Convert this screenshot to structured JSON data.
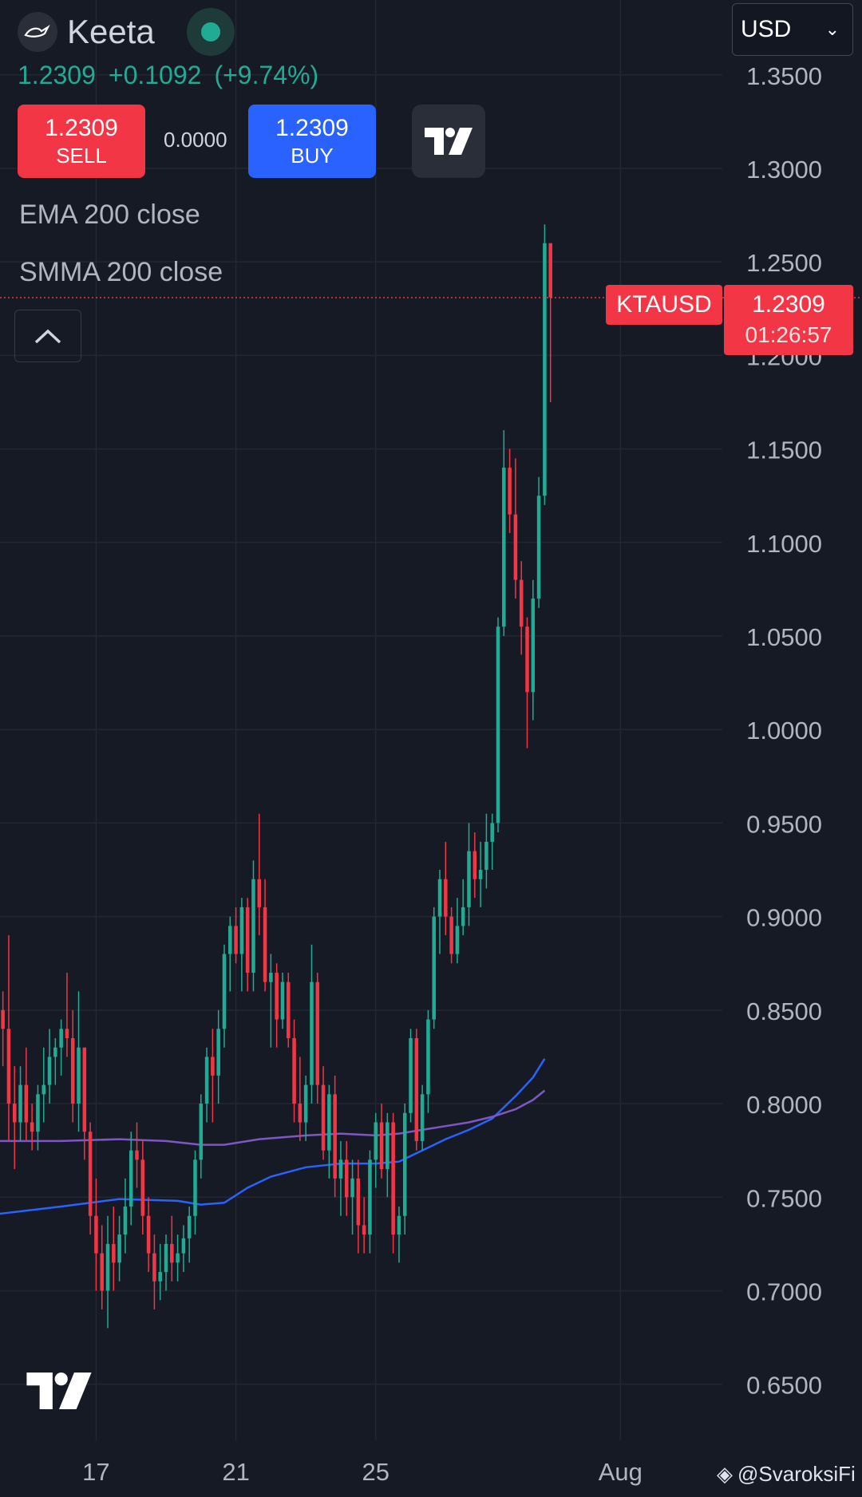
{
  "header": {
    "symbol_name": "Keeta",
    "last_price": "1.2309",
    "change": "+0.1092",
    "change_pct": "(+9.74%)"
  },
  "trade": {
    "sell_price": "1.2309",
    "sell_label": "SELL",
    "spread": "0.0000",
    "buy_price": "1.2309",
    "buy_label": "BUY"
  },
  "indicators": [
    "EMA 200 close",
    "SMMA 200 close"
  ],
  "currency_select": {
    "value": "USD"
  },
  "price_label": {
    "symbol": "KTAUSD",
    "price": "1.2309",
    "countdown": "01:26:57"
  },
  "credit": {
    "text": "@SvaroksiFi"
  },
  "icons": {
    "logo": "keeta-logo-icon",
    "live": "market-open-dot-icon",
    "tradingview": "tradingview-logo-icon",
    "collapse": "chevron-up-icon",
    "dropdown": "chevron-down-icon",
    "credit": "binance-icon"
  },
  "colors": {
    "background": "#161a25",
    "up": "#22ab94",
    "down": "#f23645",
    "ema": "#2962ff",
    "smma": "#7e57c2",
    "buy": "#2962ff",
    "sell": "#f23645"
  },
  "chart_data": {
    "type": "candlestick",
    "y_axis": {
      "ticks": [
        "1.3500",
        "1.3000",
        "1.2500",
        "1.2000",
        "1.1500",
        "1.1000",
        "1.0500",
        "1.0000",
        "0.9500",
        "0.9000",
        "0.8500",
        "0.8000",
        "0.7500",
        "0.7000",
        "0.6500"
      ],
      "range": [
        0.62,
        1.39
      ]
    },
    "x_axis": {
      "ticks": [
        {
          "label": "17",
          "t": 16
        },
        {
          "label": "21",
          "t": 40
        },
        {
          "label": "25",
          "t": 64
        },
        {
          "label": "Aug",
          "t": 106
        }
      ],
      "range": [
        -0.5,
        123.5
      ]
    },
    "current_price": 1.2309,
    "candles": [
      [
        0.85,
        0.86,
        0.82,
        0.84
      ],
      [
        0.84,
        0.89,
        0.78,
        0.8
      ],
      [
        0.8,
        0.82,
        0.765,
        0.79
      ],
      [
        0.79,
        0.82,
        0.78,
        0.81
      ],
      [
        0.81,
        0.83,
        0.78,
        0.79
      ],
      [
        0.79,
        0.8,
        0.775,
        0.785
      ],
      [
        0.785,
        0.81,
        0.775,
        0.805
      ],
      [
        0.805,
        0.83,
        0.79,
        0.81
      ],
      [
        0.81,
        0.84,
        0.8,
        0.825
      ],
      [
        0.825,
        0.835,
        0.81,
        0.83
      ],
      [
        0.83,
        0.845,
        0.815,
        0.84
      ],
      [
        0.84,
        0.87,
        0.825,
        0.835
      ],
      [
        0.835,
        0.85,
        0.79,
        0.8
      ],
      [
        0.8,
        0.86,
        0.785,
        0.83
      ],
      [
        0.83,
        0.83,
        0.77,
        0.785
      ],
      [
        0.785,
        0.79,
        0.73,
        0.74
      ],
      [
        0.74,
        0.76,
        0.7,
        0.72
      ],
      [
        0.72,
        0.735,
        0.69,
        0.7
      ],
      [
        0.7,
        0.74,
        0.68,
        0.725
      ],
      [
        0.725,
        0.745,
        0.7,
        0.715
      ],
      [
        0.715,
        0.74,
        0.705,
        0.73
      ],
      [
        0.73,
        0.76,
        0.72,
        0.745
      ],
      [
        0.745,
        0.785,
        0.735,
        0.775
      ],
      [
        0.775,
        0.79,
        0.755,
        0.77
      ],
      [
        0.77,
        0.78,
        0.73,
        0.74
      ],
      [
        0.74,
        0.75,
        0.71,
        0.72
      ],
      [
        0.72,
        0.73,
        0.69,
        0.705
      ],
      [
        0.705,
        0.725,
        0.695,
        0.71
      ],
      [
        0.71,
        0.73,
        0.7,
        0.725
      ],
      [
        0.725,
        0.74,
        0.705,
        0.715
      ],
      [
        0.715,
        0.73,
        0.705,
        0.72
      ],
      [
        0.72,
        0.735,
        0.71,
        0.728
      ],
      [
        0.728,
        0.745,
        0.715,
        0.74
      ],
      [
        0.74,
        0.775,
        0.73,
        0.77
      ],
      [
        0.77,
        0.805,
        0.76,
        0.8
      ],
      [
        0.8,
        0.83,
        0.79,
        0.825
      ],
      [
        0.825,
        0.84,
        0.79,
        0.815
      ],
      [
        0.815,
        0.85,
        0.8,
        0.84
      ],
      [
        0.84,
        0.885,
        0.83,
        0.88
      ],
      [
        0.88,
        0.9,
        0.86,
        0.895
      ],
      [
        0.895,
        0.905,
        0.875,
        0.88
      ],
      [
        0.88,
        0.91,
        0.86,
        0.905
      ],
      [
        0.905,
        0.91,
        0.86,
        0.87
      ],
      [
        0.87,
        0.93,
        0.86,
        0.92
      ],
      [
        0.92,
        0.955,
        0.89,
        0.905
      ],
      [
        0.905,
        0.92,
        0.86,
        0.865
      ],
      [
        0.865,
        0.88,
        0.83,
        0.87
      ],
      [
        0.87,
        0.875,
        0.83,
        0.845
      ],
      [
        0.845,
        0.87,
        0.84,
        0.865
      ],
      [
        0.865,
        0.87,
        0.83,
        0.835
      ],
      [
        0.835,
        0.845,
        0.79,
        0.8
      ],
      [
        0.8,
        0.825,
        0.78,
        0.79
      ],
      [
        0.79,
        0.815,
        0.78,
        0.81
      ],
      [
        0.81,
        0.885,
        0.8,
        0.865
      ],
      [
        0.865,
        0.87,
        0.8,
        0.81
      ],
      [
        0.81,
        0.82,
        0.77,
        0.775
      ],
      [
        0.775,
        0.81,
        0.76,
        0.805
      ],
      [
        0.805,
        0.815,
        0.75,
        0.76
      ],
      [
        0.76,
        0.78,
        0.74,
        0.77
      ],
      [
        0.77,
        0.78,
        0.74,
        0.75
      ],
      [
        0.75,
        0.77,
        0.73,
        0.76
      ],
      [
        0.76,
        0.77,
        0.72,
        0.735
      ],
      [
        0.735,
        0.75,
        0.72,
        0.73
      ],
      [
        0.73,
        0.775,
        0.72,
        0.77
      ],
      [
        0.77,
        0.795,
        0.755,
        0.79
      ],
      [
        0.79,
        0.8,
        0.76,
        0.765
      ],
      [
        0.765,
        0.795,
        0.75,
        0.79
      ],
      [
        0.79,
        0.795,
        0.72,
        0.73
      ],
      [
        0.73,
        0.745,
        0.715,
        0.74
      ],
      [
        0.74,
        0.8,
        0.73,
        0.795
      ],
      [
        0.795,
        0.84,
        0.79,
        0.835
      ],
      [
        0.835,
        0.84,
        0.775,
        0.78
      ],
      [
        0.78,
        0.81,
        0.775,
        0.805
      ],
      [
        0.805,
        0.85,
        0.795,
        0.845
      ],
      [
        0.845,
        0.905,
        0.84,
        0.9
      ],
      [
        0.9,
        0.925,
        0.88,
        0.92
      ],
      [
        0.92,
        0.94,
        0.89,
        0.9
      ],
      [
        0.9,
        0.905,
        0.875,
        0.88
      ],
      [
        0.88,
        0.91,
        0.875,
        0.895
      ],
      [
        0.895,
        0.92,
        0.89,
        0.905
      ],
      [
        0.905,
        0.95,
        0.895,
        0.935
      ],
      [
        0.935,
        0.945,
        0.91,
        0.92
      ],
      [
        0.92,
        0.94,
        0.905,
        0.925
      ],
      [
        0.925,
        0.955,
        0.915,
        0.94
      ],
      [
        0.94,
        0.955,
        0.925,
        0.95
      ],
      [
        0.95,
        1.06,
        0.945,
        1.055
      ],
      [
        1.055,
        1.16,
        1.05,
        1.14
      ],
      [
        1.14,
        1.15,
        1.105,
        1.115
      ],
      [
        1.115,
        1.145,
        1.07,
        1.08
      ],
      [
        1.08,
        1.09,
        1.04,
        1.055
      ],
      [
        1.055,
        1.06,
        0.99,
        1.02
      ],
      [
        1.02,
        1.08,
        1.005,
        1.07
      ],
      [
        1.07,
        1.135,
        1.065,
        1.125
      ],
      [
        1.125,
        1.27,
        1.12,
        1.26
      ],
      [
        1.26,
        1.26,
        1.175,
        1.231
      ]
    ],
    "series": [
      {
        "name": "EMA 200 close",
        "color": "#2962ff",
        "points": [
          [
            -1,
            0.741
          ],
          [
            10,
            0.745
          ],
          [
            20,
            0.749
          ],
          [
            30,
            0.748
          ],
          [
            34,
            0.746
          ],
          [
            38,
            0.747
          ],
          [
            42,
            0.755
          ],
          [
            46,
            0.761
          ],
          [
            52,
            0.766
          ],
          [
            58,
            0.768
          ],
          [
            64,
            0.768
          ],
          [
            68,
            0.769
          ],
          [
            72,
            0.775
          ],
          [
            76,
            0.781
          ],
          [
            80,
            0.786
          ],
          [
            84,
            0.792
          ],
          [
            88,
            0.804
          ],
          [
            91,
            0.814
          ],
          [
            93,
            0.824
          ]
        ]
      },
      {
        "name": "SMMA 200 close",
        "color": "#7e57c2",
        "points": [
          [
            -1,
            0.78
          ],
          [
            10,
            0.78
          ],
          [
            20,
            0.781
          ],
          [
            28,
            0.78
          ],
          [
            34,
            0.778
          ],
          [
            38,
            0.778
          ],
          [
            44,
            0.781
          ],
          [
            52,
            0.783
          ],
          [
            58,
            0.784
          ],
          [
            64,
            0.783
          ],
          [
            68,
            0.784
          ],
          [
            72,
            0.786
          ],
          [
            76,
            0.788
          ],
          [
            80,
            0.79
          ],
          [
            84,
            0.793
          ],
          [
            88,
            0.797
          ],
          [
            91,
            0.802
          ],
          [
            93,
            0.807
          ]
        ]
      }
    ]
  }
}
